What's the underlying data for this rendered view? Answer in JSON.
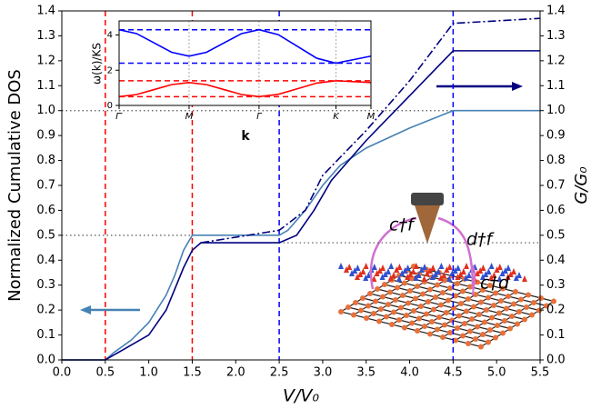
{
  "chart_data": [
    {
      "type": "line",
      "xlabel": "V/V₀",
      "ylabel": "Normalized Cumulative DOS",
      "y2label": "G/G₀",
      "ylabel_color": "#4682b4",
      "y2label_color": "#000080",
      "xlim": [
        0,
        5.5
      ],
      "ylim": [
        0,
        1.4
      ],
      "y2lim": [
        0,
        1.4
      ],
      "xticks": [
        {
          "value": 0,
          "label": "0.0"
        },
        {
          "value": 0.5,
          "label": "0.5"
        },
        {
          "value": 1,
          "label": "1.0"
        },
        {
          "value": 1.5,
          "label": "1.5"
        },
        {
          "value": 2,
          "label": "2.0"
        },
        {
          "value": 2.5,
          "label": "2.5"
        },
        {
          "value": 3,
          "label": "3.0"
        },
        {
          "value": 3.5,
          "label": "3.5"
        },
        {
          "value": 4,
          "label": "4.0"
        },
        {
          "value": 4.5,
          "label": "4.5"
        },
        {
          "value": 5,
          "label": "5.0"
        },
        {
          "value": 5.5,
          "label": "5.5"
        }
      ],
      "yticks": [
        {
          "value": 0,
          "label": "0.0"
        },
        0.1,
        0.2,
        0.3,
        0.4,
        0.5,
        0.6,
        0.7,
        0.8,
        0.9,
        {
          "value": 1,
          "label": "1.0"
        },
        1.1,
        1.2,
        1.3,
        1.4
      ],
      "y2ticks": [
        {
          "value": 0,
          "label": "0.0"
        },
        0.1,
        0.2,
        0.3,
        0.4,
        0.5,
        0.6,
        0.7,
        0.8,
        0.9,
        {
          "value": 1,
          "label": "1.0"
        },
        1.1,
        1.2,
        1.3,
        1.4
      ],
      "series": [
        {
          "color": "#4682b4",
          "style": "solid",
          "x": [
            0,
            0.5,
            0.6,
            0.8,
            1.0,
            1.2,
            1.3,
            1.4,
            1.5,
            2.5,
            2.6,
            2.8,
            3.0,
            3.2,
            3.5,
            4.0,
            4.5,
            5.5
          ],
          "values": [
            0,
            0,
            0.03,
            0.08,
            0.15,
            0.26,
            0.34,
            0.44,
            0.5,
            0.5,
            0.52,
            0.6,
            0.7,
            0.78,
            0.85,
            0.93,
            1.0,
            1.0
          ]
        },
        {
          "color": "#000080",
          "style": "solid",
          "axis": "y2",
          "x": [
            0,
            0.5,
            0.7,
            1.0,
            1.2,
            1.4,
            1.5,
            1.6,
            2.5,
            2.7,
            2.9,
            3.1,
            3.5,
            4.0,
            4.5,
            5.5
          ],
          "values": [
            0,
            0,
            0.04,
            0.1,
            0.2,
            0.37,
            0.44,
            0.47,
            0.47,
            0.5,
            0.6,
            0.72,
            0.88,
            1.06,
            1.24,
            1.24
          ]
        },
        {
          "color": "#000080",
          "style": "dashdot",
          "axis": "y2",
          "x": [
            1.6,
            2.5,
            2.8,
            3.0,
            3.5,
            4.0,
            4.5,
            5.0,
            5.5
          ],
          "values": [
            0.47,
            0.52,
            0.6,
            0.74,
            0.92,
            1.12,
            1.35,
            1.36,
            1.37
          ]
        }
      ],
      "vlines": [
        {
          "value": 0.5,
          "color": "#ff0000"
        },
        {
          "value": 1.5,
          "color": "#ff0000"
        },
        {
          "value": 2.5,
          "color": "#0000ff"
        },
        {
          "value": 4.5,
          "color": "#0000ff"
        }
      ],
      "hlines": [
        {
          "value": 1.0,
          "from": 0,
          "to": 4.5
        },
        {
          "value": 0.5,
          "from": 0,
          "to": 2.5
        },
        {
          "value": 0.47,
          "from": 2.5,
          "to": 5.5
        }
      ],
      "annotations": [
        "c†f",
        "d†f",
        "c†d"
      ]
    },
    {
      "type": "line",
      "xlabel": "k",
      "ylabel": "ω(k)/KS",
      "xlim": [
        0,
        3.6
      ],
      "ylim": [
        0,
        4.8
      ],
      "xticks": [
        {
          "value": 0,
          "label": "Γ′"
        },
        {
          "value": 1,
          "label": "M"
        },
        {
          "value": 2,
          "label": "Γ"
        },
        {
          "value": 3.1,
          "label": "K"
        },
        {
          "value": 3.6,
          "label": "M"
        }
      ],
      "yticks": [
        0,
        2,
        4
      ],
      "grid": "x",
      "series": [
        {
          "color": "#0000ff",
          "style": "solid",
          "x": [
            0,
            0.25,
            0.5,
            0.75,
            1,
            1.25,
            1.5,
            1.75,
            2,
            2.275,
            2.55,
            2.825,
            3.1,
            3.35,
            3.6
          ],
          "values": [
            4.3,
            4.08,
            3.55,
            3.02,
            2.8,
            3.02,
            3.55,
            4.08,
            4.3,
            4.02,
            3.35,
            2.68,
            2.4,
            2.6,
            2.8
          ]
        },
        {
          "color": "#ff0000",
          "style": "solid",
          "x": [
            0,
            0.25,
            0.5,
            0.75,
            1,
            1.25,
            1.5,
            1.75,
            2,
            2.275,
            2.55,
            2.825,
            3.1,
            3.35,
            3.6
          ],
          "values": [
            0.5,
            0.62,
            0.9,
            1.18,
            1.3,
            1.18,
            0.9,
            0.62,
            0.5,
            0.63,
            0.95,
            1.27,
            1.4,
            1.35,
            1.3
          ]
        }
      ],
      "hlines": [
        {
          "value": 4.3,
          "color": "#0000ff"
        },
        {
          "value": 2.4,
          "color": "#0000ff"
        },
        {
          "value": 1.4,
          "color": "#ff0000"
        },
        {
          "value": 0.5,
          "color": "#ff0000"
        }
      ]
    }
  ]
}
